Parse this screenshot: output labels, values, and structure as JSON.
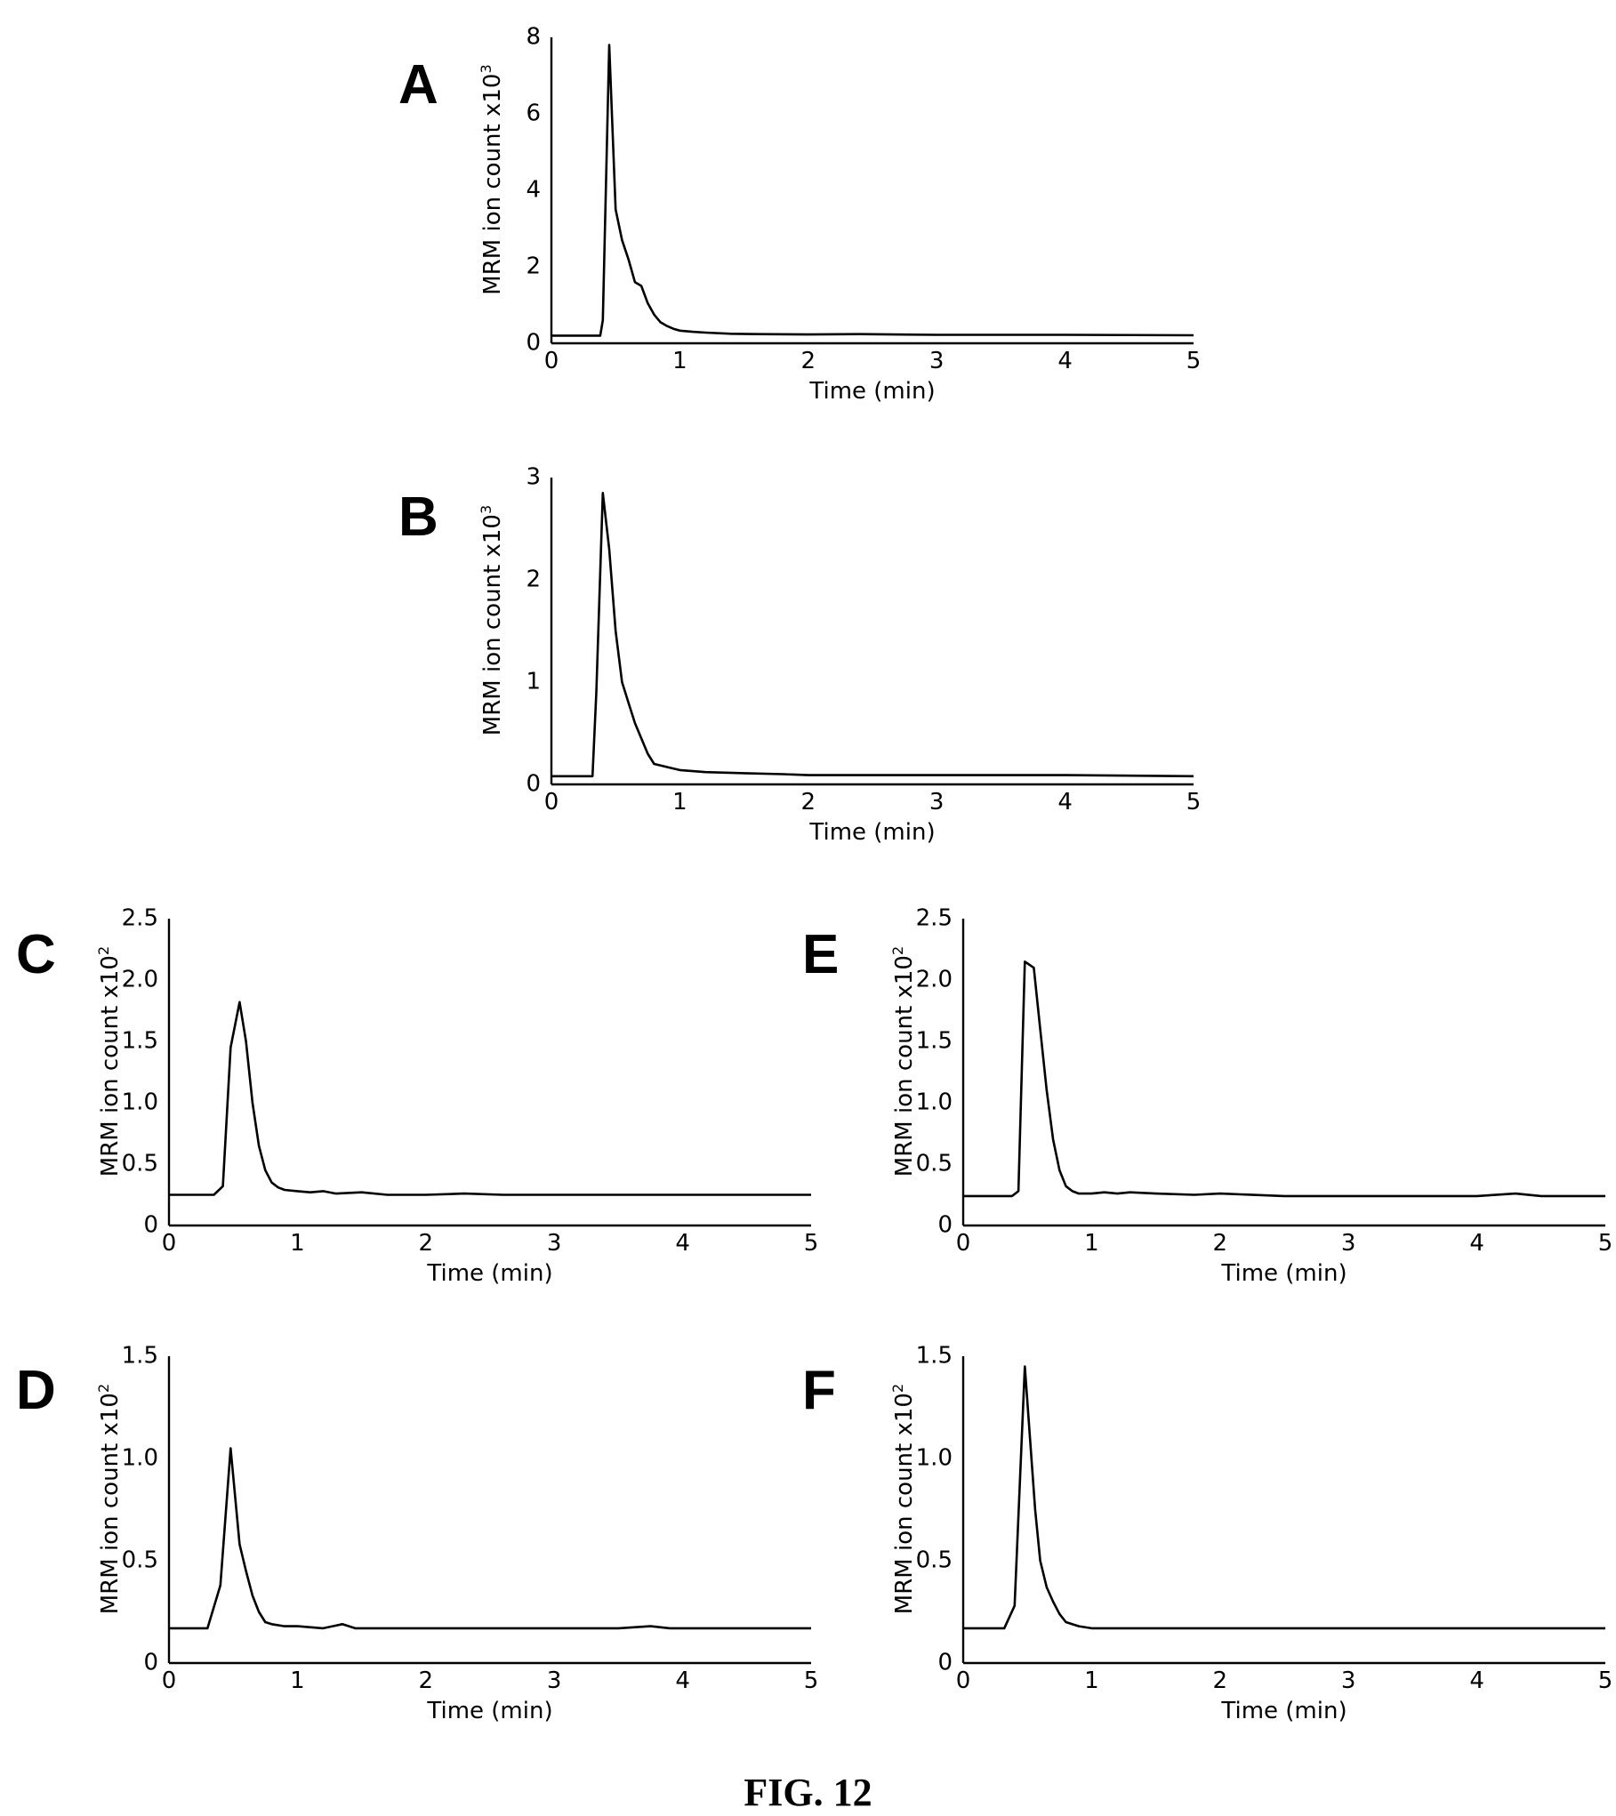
{
  "figure": {
    "caption": "FIG. 12"
  },
  "chart_data": [
    {
      "panel": "A",
      "type": "line",
      "xlabel": "Time (min)",
      "ylabel": "MRM ion count x10",
      "ylabel_exponent": "3",
      "xlim": [
        0,
        5
      ],
      "ylim": [
        0,
        8
      ],
      "xticks": [
        "0",
        "1",
        "2",
        "3",
        "4",
        "5"
      ],
      "yticks": [
        "0",
        "2",
        "4",
        "6",
        "8"
      ],
      "x": [
        0,
        0.38,
        0.4,
        0.45,
        0.5,
        0.55,
        0.6,
        0.65,
        0.7,
        0.75,
        0.8,
        0.85,
        0.9,
        0.95,
        1.0,
        1.1,
        1.2,
        1.4,
        1.6,
        2.0,
        2.4,
        3.0,
        4.0,
        5.0
      ],
      "y": [
        0.2,
        0.2,
        0.6,
        7.8,
        3.5,
        2.7,
        2.2,
        1.6,
        1.5,
        1.05,
        0.75,
        0.55,
        0.45,
        0.38,
        0.33,
        0.3,
        0.28,
        0.25,
        0.24,
        0.23,
        0.24,
        0.22,
        0.22,
        0.21
      ]
    },
    {
      "panel": "B",
      "type": "line",
      "xlabel": "Time (min)",
      "ylabel": "MRM ion count x10",
      "ylabel_exponent": "3",
      "xlim": [
        0,
        5
      ],
      "ylim": [
        0,
        3
      ],
      "xticks": [
        "0",
        "1",
        "2",
        "3",
        "4",
        "5"
      ],
      "yticks": [
        "0",
        "1",
        "2",
        "3"
      ],
      "x": [
        0,
        0.32,
        0.35,
        0.4,
        0.45,
        0.5,
        0.55,
        0.6,
        0.65,
        0.7,
        0.75,
        0.8,
        0.9,
        1.0,
        1.2,
        1.5,
        1.8,
        2.0,
        3.0,
        4.0,
        5.0
      ],
      "y": [
        0.08,
        0.08,
        0.9,
        2.85,
        2.3,
        1.5,
        1.0,
        0.8,
        0.6,
        0.45,
        0.3,
        0.2,
        0.17,
        0.14,
        0.12,
        0.11,
        0.1,
        0.09,
        0.09,
        0.09,
        0.08
      ]
    },
    {
      "panel": "C",
      "type": "line",
      "xlabel": "Time (min)",
      "ylabel": "MRM ion count x10",
      "ylabel_exponent": "2",
      "xlim": [
        0,
        5
      ],
      "ylim": [
        0,
        2.5
      ],
      "xticks": [
        "0",
        "1",
        "2",
        "3",
        "4",
        "5"
      ],
      "yticks": [
        "0",
        "0.5",
        "1.0",
        "1.5",
        "2.0",
        "2.5"
      ],
      "x": [
        0,
        0.35,
        0.42,
        0.48,
        0.55,
        0.6,
        0.65,
        0.7,
        0.75,
        0.8,
        0.85,
        0.9,
        1.0,
        1.1,
        1.2,
        1.3,
        1.5,
        1.7,
        2.0,
        2.3,
        2.6,
        3.0,
        3.5,
        4.0,
        4.5,
        5.0
      ],
      "y": [
        0.25,
        0.25,
        0.32,
        1.45,
        1.82,
        1.5,
        1.0,
        0.65,
        0.45,
        0.35,
        0.31,
        0.29,
        0.28,
        0.27,
        0.28,
        0.26,
        0.27,
        0.25,
        0.25,
        0.26,
        0.25,
        0.25,
        0.25,
        0.25,
        0.25,
        0.25
      ]
    },
    {
      "panel": "D",
      "type": "line",
      "xlabel": "Time (min)",
      "ylabel": "MRM ion count x10",
      "ylabel_exponent": "2",
      "xlim": [
        0,
        5
      ],
      "ylim": [
        0,
        1.5
      ],
      "xticks": [
        "0",
        "1",
        "2",
        "3",
        "4",
        "5"
      ],
      "yticks": [
        "0",
        "0.5",
        "1.0",
        "1.5"
      ],
      "x": [
        0,
        0.3,
        0.4,
        0.48,
        0.55,
        0.6,
        0.65,
        0.7,
        0.75,
        0.8,
        0.9,
        1.0,
        1.2,
        1.35,
        1.45,
        1.6,
        2.0,
        2.5,
        3.0,
        3.5,
        3.75,
        3.9,
        4.5,
        5.0
      ],
      "y": [
        0.17,
        0.17,
        0.38,
        1.05,
        0.58,
        0.45,
        0.33,
        0.25,
        0.2,
        0.19,
        0.18,
        0.18,
        0.17,
        0.19,
        0.17,
        0.17,
        0.17,
        0.17,
        0.17,
        0.17,
        0.18,
        0.17,
        0.17,
        0.17
      ]
    },
    {
      "panel": "E",
      "type": "line",
      "xlabel": "Time (min)",
      "ylabel": "MRM ion count x10",
      "ylabel_exponent": "2",
      "xlim": [
        0,
        5
      ],
      "ylim": [
        0,
        2.5
      ],
      "xticks": [
        "0",
        "1",
        "2",
        "3",
        "4",
        "5"
      ],
      "yticks": [
        "0",
        "0.5",
        "1.0",
        "1.5",
        "2.0",
        "2.5"
      ],
      "x": [
        0,
        0.38,
        0.43,
        0.48,
        0.55,
        0.6,
        0.65,
        0.7,
        0.75,
        0.8,
        0.85,
        0.9,
        1.0,
        1.1,
        1.2,
        1.3,
        1.5,
        1.8,
        2.0,
        2.5,
        3.0,
        3.5,
        4.0,
        4.3,
        4.5,
        5.0
      ],
      "y": [
        0.24,
        0.24,
        0.28,
        2.15,
        2.1,
        1.6,
        1.1,
        0.7,
        0.45,
        0.32,
        0.28,
        0.26,
        0.26,
        0.27,
        0.26,
        0.27,
        0.26,
        0.25,
        0.26,
        0.24,
        0.24,
        0.24,
        0.24,
        0.26,
        0.24,
        0.24
      ]
    },
    {
      "panel": "F",
      "type": "line",
      "xlabel": "Time (min)",
      "ylabel": "MRM ion count x10",
      "ylabel_exponent": "2",
      "xlim": [
        0,
        5
      ],
      "ylim": [
        0,
        1.5
      ],
      "xticks": [
        "0",
        "1",
        "2",
        "3",
        "4",
        "5"
      ],
      "yticks": [
        "0",
        "0.5",
        "1.0",
        "1.5"
      ],
      "x": [
        0,
        0.32,
        0.4,
        0.48,
        0.52,
        0.56,
        0.6,
        0.65,
        0.7,
        0.75,
        0.8,
        0.9,
        1.0,
        1.2,
        1.5,
        2.0,
        2.5,
        3.0,
        3.5,
        4.0,
        4.5,
        5.0
      ],
      "y": [
        0.17,
        0.17,
        0.28,
        1.45,
        1.1,
        0.75,
        0.5,
        0.37,
        0.3,
        0.24,
        0.2,
        0.18,
        0.17,
        0.17,
        0.17,
        0.17,
        0.17,
        0.17,
        0.17,
        0.17,
        0.17,
        0.17
      ]
    }
  ]
}
